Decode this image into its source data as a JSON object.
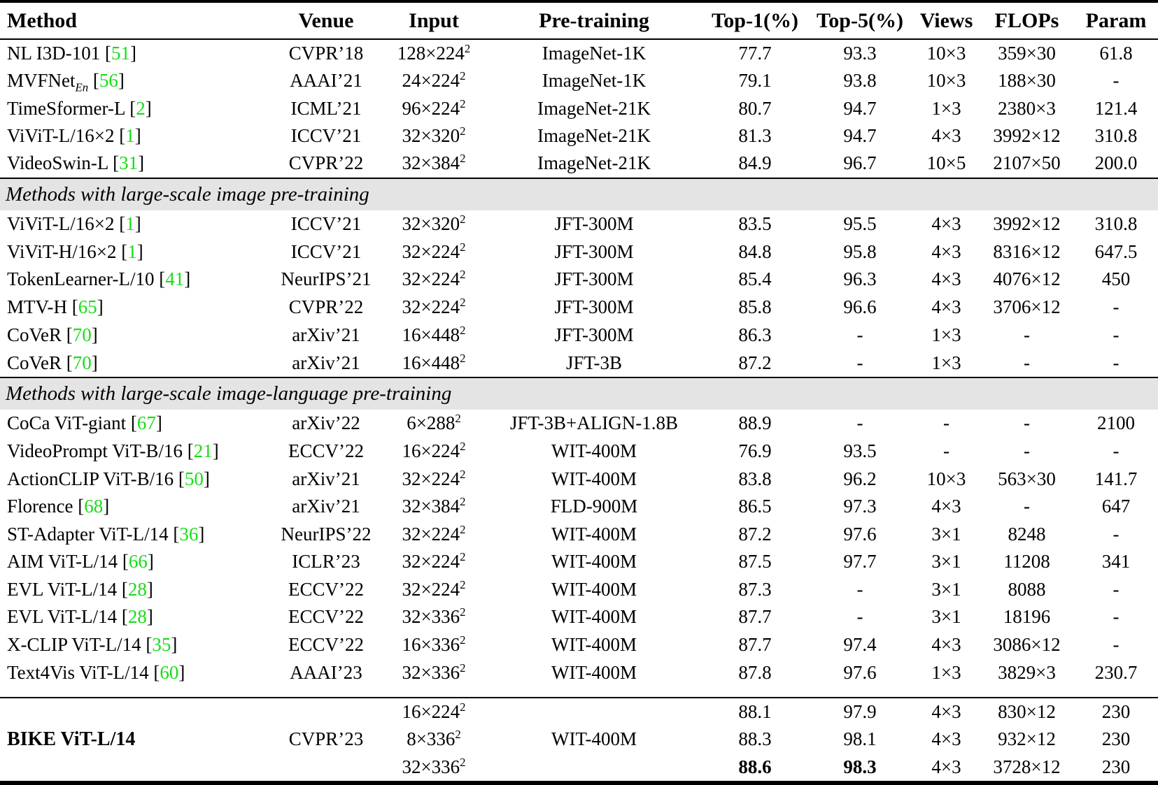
{
  "colors": {
    "citation_green": "#16DD16",
    "section_band_bg": "#E4E4E4",
    "rule_color": "#000000",
    "background": "#FFFFFF"
  },
  "table": {
    "citation_brackets": [
      "[",
      "]"
    ],
    "columns": [
      {
        "key": "method",
        "label": "Method"
      },
      {
        "key": "venue",
        "label": "Venue"
      },
      {
        "key": "input",
        "label": "Input"
      },
      {
        "key": "pretraining",
        "label": "Pre-training"
      },
      {
        "key": "top1",
        "label": "Top-1(%)"
      },
      {
        "key": "top5",
        "label": "Top-5(%)"
      },
      {
        "key": "views",
        "label": "Views"
      },
      {
        "key": "flops",
        "label": "FLOPs"
      },
      {
        "key": "param",
        "label": "Param"
      }
    ],
    "sections": [
      {
        "header": null,
        "rows": [
          {
            "method": "NL I3D-101",
            "ref": "51",
            "venue": "CVPR’18",
            "input": "128×224^2",
            "pretraining": "ImageNet-1K",
            "top1": "77.7",
            "top5": "93.3",
            "views": "10×3",
            "flops": "359×30",
            "param": "61.8"
          },
          {
            "method": "MVFNet_{En}",
            "ref": "56",
            "venue": "AAAI’21",
            "input": "24×224^2",
            "pretraining": "ImageNet-1K",
            "top1": "79.1",
            "top5": "93.8",
            "views": "10×3",
            "flops": "188×30",
            "param": "-"
          },
          {
            "method": "TimeSformer-L",
            "ref": "2",
            "venue": "ICML’21",
            "input": "96×224^2",
            "pretraining": "ImageNet-21K",
            "top1": "80.7",
            "top5": "94.7",
            "views": "1×3",
            "flops": "2380×3",
            "param": "121.4"
          },
          {
            "method": "ViViT-L/16×2",
            "ref": "1",
            "venue": "ICCV’21",
            "input": "32×320^2",
            "pretraining": "ImageNet-21K",
            "top1": "81.3",
            "top5": "94.7",
            "views": "4×3",
            "flops": "3992×12",
            "param": "310.8"
          },
          {
            "method": "VideoSwin-L",
            "ref": "31",
            "venue": "CVPR’22",
            "input": "32×384^2",
            "pretraining": "ImageNet-21K",
            "top1": "84.9",
            "top5": "96.7",
            "views": "10×5",
            "flops": "2107×50",
            "param": "200.0"
          }
        ]
      },
      {
        "header": "Methods with large-scale image pre-training",
        "rows": [
          {
            "method": "ViViT-L/16×2",
            "ref": "1",
            "venue": "ICCV’21",
            "input": "32×320^2",
            "pretraining": "JFT-300M",
            "top1": "83.5",
            "top5": "95.5",
            "views": "4×3",
            "flops": "3992×12",
            "param": "310.8"
          },
          {
            "method": "ViViT-H/16×2",
            "ref": "1",
            "venue": "ICCV’21",
            "input": "32×224^2",
            "pretraining": "JFT-300M",
            "top1": "84.8",
            "top5": "95.8",
            "views": "4×3",
            "flops": "8316×12",
            "param": "647.5"
          },
          {
            "method": "TokenLearner-L/10",
            "ref": "41",
            "venue": "NeurIPS’21",
            "input": "32×224^2",
            "pretraining": "JFT-300M",
            "top1": "85.4",
            "top5": "96.3",
            "views": "4×3",
            "flops": "4076×12",
            "param": "450"
          },
          {
            "method": "MTV-H",
            "ref": "65",
            "venue": "CVPR’22",
            "input": "32×224^2",
            "pretraining": "JFT-300M",
            "top1": "85.8",
            "top5": "96.6",
            "views": "4×3",
            "flops": "3706×12",
            "param": "-"
          },
          {
            "method": "CoVeR",
            "ref": "70",
            "venue": "arXiv’21",
            "input": "16×448^2",
            "pretraining": "JFT-300M",
            "top1": "86.3",
            "top5": "-",
            "views": "1×3",
            "flops": "-",
            "param": "-"
          },
          {
            "method": "CoVeR",
            "ref": "70",
            "venue": "arXiv’21",
            "input": "16×448^2",
            "pretraining": "JFT-3B",
            "top1": "87.2",
            "top5": "-",
            "views": "1×3",
            "flops": "-",
            "param": "-"
          }
        ]
      },
      {
        "header": "Methods with large-scale image-language pre-training",
        "rows": [
          {
            "method": "CoCa ViT-giant",
            "ref": "67",
            "venue": "arXiv’22",
            "input": "6×288^2",
            "pretraining": "JFT-3B+ALIGN-1.8B",
            "top1": "88.9",
            "top5": "-",
            "views": "-",
            "flops": "-",
            "param": "2100"
          },
          {
            "method": "VideoPrompt ViT-B/16",
            "ref": "21",
            "venue": "ECCV’22",
            "input": "16×224^2",
            "pretraining": "WIT-400M",
            "top1": "76.9",
            "top5": "93.5",
            "views": "-",
            "flops": "-",
            "param": "-"
          },
          {
            "method": "ActionCLIP ViT-B/16",
            "ref": "50",
            "venue": "arXiv’21",
            "input": "32×224^2",
            "pretraining": "WIT-400M",
            "top1": "83.8",
            "top5": "96.2",
            "views": "10×3",
            "flops": "563×30",
            "param": "141.7"
          },
          {
            "method": "Florence",
            "ref": "68",
            "venue": "arXiv’21",
            "input": "32×384^2",
            "pretraining": "FLD-900M",
            "top1": "86.5",
            "top5": "97.3",
            "views": "4×3",
            "flops": "-",
            "param": "647"
          },
          {
            "method": "ST-Adapter ViT-L/14",
            "ref": "36",
            "venue": "NeurIPS’22",
            "input": "32×224^2",
            "pretraining": "WIT-400M",
            "top1": "87.2",
            "top5": "97.6",
            "views": "3×1",
            "flops": "8248",
            "param": "-"
          },
          {
            "method": "AIM ViT-L/14",
            "ref": "66",
            "venue": "ICLR’23",
            "input": "32×224^2",
            "pretraining": "WIT-400M",
            "top1": "87.5",
            "top5": "97.7",
            "views": "3×1",
            "flops": "11208",
            "param": "341"
          },
          {
            "method": "EVL ViT-L/14",
            "ref": "28",
            "venue": "ECCV’22",
            "input": "32×224^2",
            "pretraining": "WIT-400M",
            "top1": "87.3",
            "top5": "-",
            "views": "3×1",
            "flops": "8088",
            "param": "-"
          },
          {
            "method": "EVL ViT-L/14",
            "ref": "28",
            "venue": "ECCV’22",
            "input": "32×336^2",
            "pretraining": "WIT-400M",
            "top1": "87.7",
            "top5": "-",
            "views": "3×1",
            "flops": "18196",
            "param": "-"
          },
          {
            "method": "X-CLIP ViT-L/14",
            "ref": "35",
            "venue": "ECCV’22",
            "input": "16×336^2",
            "pretraining": "WIT-400M",
            "top1": "87.7",
            "top5": "97.4",
            "views": "4×3",
            "flops": "3086×12",
            "param": "-"
          },
          {
            "method": "Text4Vis ViT-L/14",
            "ref": "60",
            "venue": "AAAI’23",
            "input": "32×336^2",
            "pretraining": "WIT-400M",
            "top1": "87.8",
            "top5": "97.6",
            "views": "1×3",
            "flops": "3829×3",
            "param": "230.7"
          }
        ]
      }
    ],
    "highlight_group": {
      "method": "BIKE ViT-L/14",
      "venue": "CVPR’23",
      "pretraining": "WIT-400M",
      "rows": [
        {
          "input": "16×224^2",
          "top1": "88.1",
          "top5": "97.9",
          "views": "4×3",
          "flops": "830×12",
          "param": "230",
          "bold": []
        },
        {
          "input": "8×336^2",
          "top1": "88.3",
          "top5": "98.1",
          "views": "4×3",
          "flops": "932×12",
          "param": "230",
          "bold": []
        },
        {
          "input": "32×336^2",
          "top1": "88.6",
          "top5": "98.3",
          "views": "4×3",
          "flops": "3728×12",
          "param": "230",
          "bold": [
            "top1",
            "top5"
          ]
        }
      ]
    }
  }
}
